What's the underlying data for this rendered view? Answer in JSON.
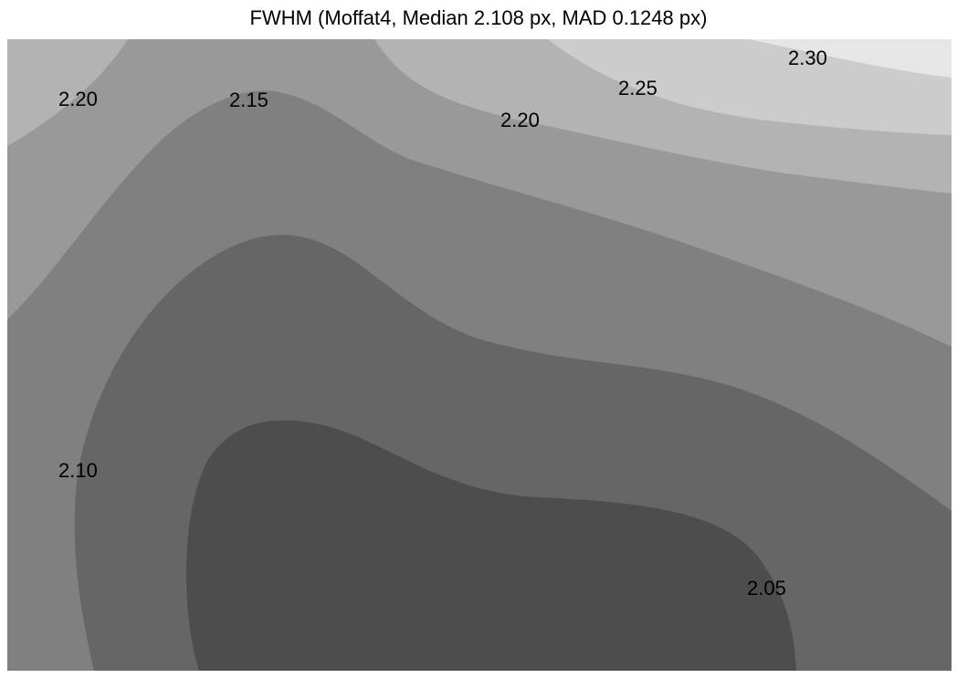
{
  "chart_data": {
    "type": "contour",
    "title": "FWHM (Moffat4, Median 2.108 px, MAD 0.1248 px)",
    "xlabel": "",
    "ylabel": "",
    "colorscale": "grayscale",
    "levels": [
      {
        "value": 2.0,
        "color": "#4d4d4d"
      },
      {
        "value": 2.05,
        "color": "#666666"
      },
      {
        "value": 2.1,
        "color": "#808080"
      },
      {
        "value": 2.15,
        "color": "#999999"
      },
      {
        "value": 2.2,
        "color": "#b3b3b3"
      },
      {
        "value": 2.25,
        "color": "#cccccc"
      },
      {
        "value": 2.3,
        "color": "#e6e6e6"
      }
    ],
    "contour_labels": [
      {
        "text": "2.20",
        "level": 2.2
      },
      {
        "text": "2.15",
        "level": 2.15
      },
      {
        "text": "2.25",
        "level": 2.25
      },
      {
        "text": "2.30",
        "level": 2.3
      },
      {
        "text": "2.20",
        "level": 2.2
      },
      {
        "text": "2.10",
        "level": 2.1
      },
      {
        "text": "2.05",
        "level": 2.05
      }
    ],
    "grid": false,
    "legend": "none"
  }
}
